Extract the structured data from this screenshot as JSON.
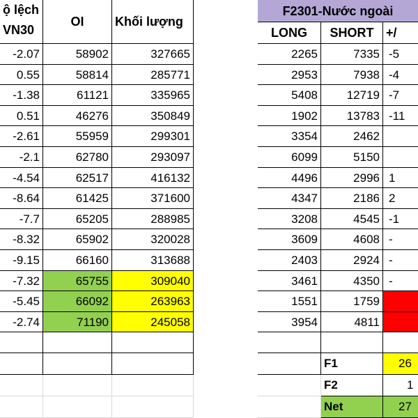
{
  "headers": {
    "deviation_line1": "ộ lệch",
    "deviation_line2": "VN30",
    "oi": "OI",
    "volume": "Khối lượng",
    "foreign_group": "F2301-Nước ngoài",
    "long": "LONG",
    "short": "SHORT",
    "net_change": "+/"
  },
  "rows": [
    {
      "dev": "-2.07",
      "oi": "58902",
      "vol": "327665",
      "long": "2265",
      "short": "7335",
      "chg": "-5"
    },
    {
      "dev": "0.55",
      "oi": "58814",
      "vol": "285771",
      "long": "2953",
      "short": "7938",
      "chg": "-4"
    },
    {
      "dev": "-1.38",
      "oi": "61121",
      "vol": "335965",
      "long": "5408",
      "short": "12719",
      "chg": "-7"
    },
    {
      "dev": "0.51",
      "oi": "46276",
      "vol": "350849",
      "long": "1902",
      "short": "13783",
      "chg": "-11"
    },
    {
      "dev": "-2.61",
      "oi": "55959",
      "vol": "299301",
      "long": "3354",
      "short": "2462",
      "chg": ""
    },
    {
      "dev": "-2.1",
      "oi": "62780",
      "vol": "293097",
      "long": "6099",
      "short": "5150",
      "chg": ""
    },
    {
      "dev": "-4.54",
      "oi": "62517",
      "vol": "416132",
      "long": "4496",
      "short": "2996",
      "chg": "1"
    },
    {
      "dev": "-8.64",
      "oi": "61425",
      "vol": "371600",
      "long": "4347",
      "short": "2186",
      "chg": "2"
    },
    {
      "dev": "-7.7",
      "oi": "65205",
      "vol": "288985",
      "long": "3208",
      "short": "4545",
      "chg": "-1"
    },
    {
      "dev": "-8.32",
      "oi": "65902",
      "vol": "320028",
      "long": "3609",
      "short": "4608",
      "chg": "-"
    },
    {
      "dev": "-9.15",
      "oi": "66160",
      "vol": "313688",
      "long": "2403",
      "short": "2924",
      "chg": "-"
    },
    {
      "dev": "-7.32",
      "oi": "65755",
      "vol": "309040",
      "long": "3461",
      "short": "4350",
      "chg": "-"
    },
    {
      "dev": "-5.45",
      "oi": "66092",
      "vol": "263963",
      "long": "1551",
      "short": "1759",
      "chg": ""
    },
    {
      "dev": "-2.74",
      "oi": "71190",
      "vol": "245058",
      "long": "3954",
      "short": "4811",
      "chg": ""
    }
  ],
  "summary": {
    "f1_label": "F1",
    "f1_value": "26",
    "f2_label": "F2",
    "f2_value": "1",
    "net_label": "Net",
    "net_value": "27"
  },
  "colors": {
    "highlight_green": "#92d050",
    "highlight_yellow": "#ffff00",
    "highlight_red": "#ff0000",
    "header_purple": "#b4a7d6"
  }
}
